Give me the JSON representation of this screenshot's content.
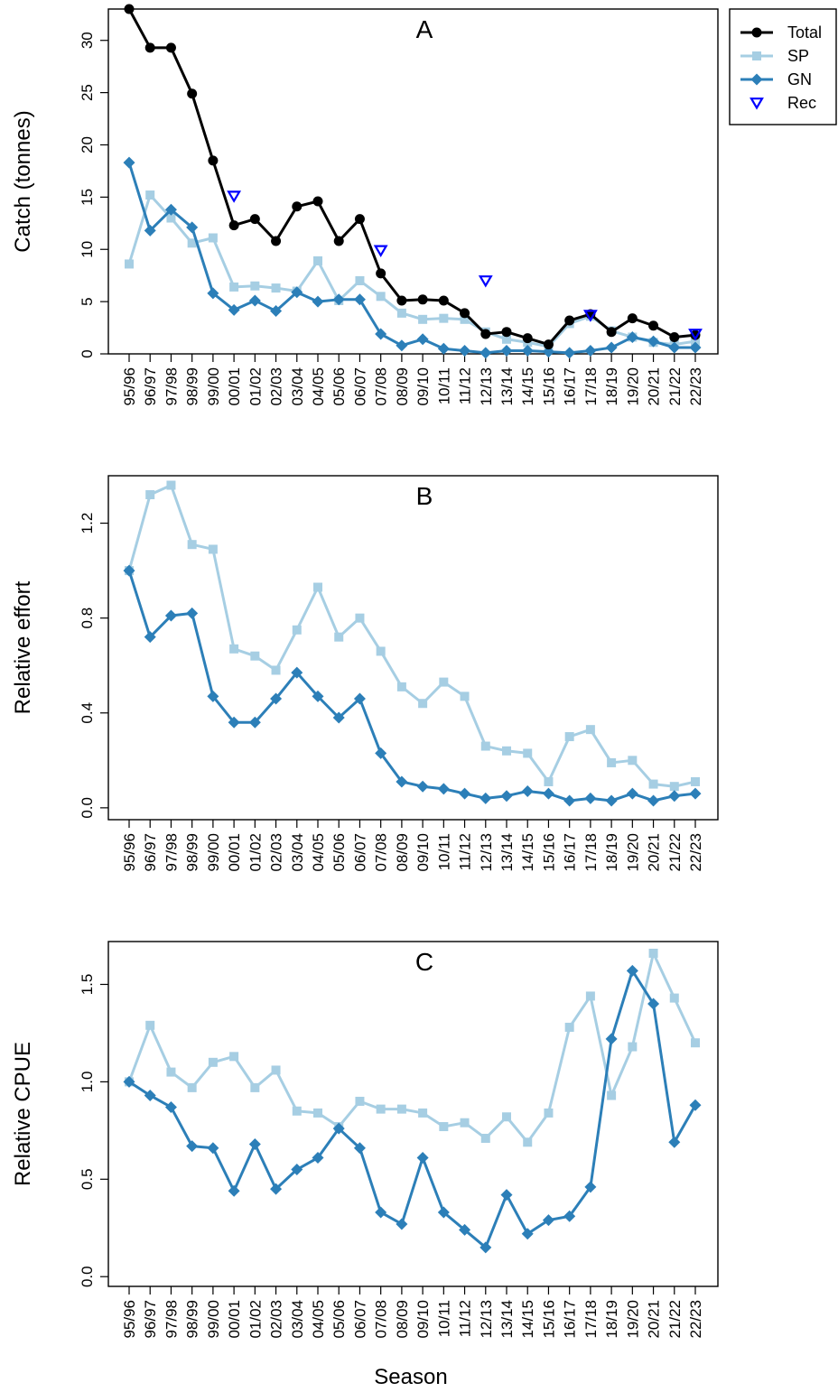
{
  "chart_data": [
    {
      "panel": "A",
      "type": "line",
      "ylabel": "Catch (tonnes)",
      "xlabel": "",
      "ylim": [
        0,
        33
      ],
      "yticks": [
        0,
        5,
        10,
        15,
        20,
        25,
        30
      ],
      "categories": [
        "95/96",
        "96/97",
        "97/98",
        "98/99",
        "99/00",
        "00/01",
        "01/02",
        "02/03",
        "03/04",
        "04/05",
        "05/06",
        "06/07",
        "07/08",
        "08/09",
        "09/10",
        "10/11",
        "11/12",
        "12/13",
        "13/14",
        "14/15",
        "15/16",
        "16/17",
        "17/18",
        "18/19",
        "19/20",
        "20/21",
        "21/22",
        "22/23"
      ],
      "series": [
        {
          "name": "SP",
          "color": "#a6cee3",
          "marker": "square",
          "values": [
            8.6,
            15.2,
            13.0,
            10.6,
            11.1,
            6.4,
            6.5,
            6.3,
            6.0,
            8.9,
            5.1,
            7.0,
            5.5,
            3.9,
            3.3,
            3.4,
            3.3,
            2.1,
            1.4,
            1.1,
            0.7,
            2.9,
            3.6,
            2.2,
            1.6,
            1.1,
            0.9,
            1.2
          ]
        },
        {
          "name": "GN",
          "color": "#2c7fb8",
          "marker": "diamond",
          "values": [
            18.3,
            11.8,
            13.8,
            12.1,
            5.8,
            4.2,
            5.1,
            4.1,
            5.9,
            5.0,
            5.2,
            5.2,
            1.9,
            0.8,
            1.4,
            0.5,
            0.3,
            0.1,
            0.3,
            0.3,
            0.2,
            0.1,
            0.3,
            0.6,
            1.6,
            1.2,
            0.6,
            0.6
          ]
        },
        {
          "name": "Total",
          "color": "#000000",
          "marker": "circle",
          "values": [
            33.0,
            29.3,
            29.3,
            24.9,
            18.5,
            12.3,
            12.9,
            10.8,
            14.1,
            14.6,
            10.8,
            12.9,
            7.7,
            5.1,
            5.2,
            5.1,
            3.9,
            1.9,
            2.1,
            1.5,
            0.9,
            3.2,
            3.8,
            2.1,
            3.4,
            2.7,
            1.6,
            1.8
          ]
        }
      ],
      "rec": {
        "name": "Rec",
        "color": "#0000ff",
        "marker": "triangle-down",
        "points": [
          {
            "x": "00/01",
            "y": 15.1
          },
          {
            "x": "07/08",
            "y": 9.9
          },
          {
            "x": "12/13",
            "y": 7.0
          },
          {
            "x": "17/18",
            "y": 3.7
          },
          {
            "x": "22/23",
            "y": 1.9
          }
        ]
      },
      "legend": {
        "position": "outside-top-right",
        "entries": [
          "Total",
          "SP",
          "GN",
          "Rec"
        ]
      }
    },
    {
      "panel": "B",
      "type": "line",
      "ylabel": "Relative effort",
      "xlabel": "",
      "ylim": [
        -0.05,
        1.4
      ],
      "yticks": [
        0.0,
        0.4,
        0.8,
        1.2
      ],
      "categories": [
        "95/96",
        "96/97",
        "97/98",
        "98/99",
        "99/00",
        "00/01",
        "01/02",
        "02/03",
        "03/04",
        "04/05",
        "05/06",
        "06/07",
        "07/08",
        "08/09",
        "09/10",
        "10/11",
        "11/12",
        "12/13",
        "13/14",
        "14/15",
        "15/16",
        "16/17",
        "17/18",
        "18/19",
        "19/20",
        "20/21",
        "21/22",
        "22/23"
      ],
      "series": [
        {
          "name": "SP",
          "color": "#a6cee3",
          "marker": "square",
          "values": [
            1.0,
            1.32,
            1.36,
            1.11,
            1.09,
            0.67,
            0.64,
            0.58,
            0.75,
            0.93,
            0.72,
            0.8,
            0.66,
            0.51,
            0.44,
            0.53,
            0.47,
            0.26,
            0.24,
            0.23,
            0.11,
            0.3,
            0.33,
            0.19,
            0.2,
            0.1,
            0.09,
            0.11
          ]
        },
        {
          "name": "GN",
          "color": "#2c7fb8",
          "marker": "diamond",
          "values": [
            1.0,
            0.72,
            0.81,
            0.82,
            0.47,
            0.36,
            0.36,
            0.46,
            0.57,
            0.47,
            0.38,
            0.46,
            0.23,
            0.11,
            0.09,
            0.08,
            0.06,
            0.04,
            0.05,
            0.07,
            0.06,
            0.03,
            0.04,
            0.03,
            0.06,
            0.03,
            0.05,
            0.06
          ]
        }
      ]
    },
    {
      "panel": "C",
      "type": "line",
      "ylabel": "Relative CPUE",
      "xlabel": "Season",
      "ylim": [
        -0.05,
        1.72
      ],
      "yticks": [
        0.0,
        0.5,
        1.0,
        1.5
      ],
      "categories": [
        "95/96",
        "96/97",
        "97/98",
        "98/99",
        "99/00",
        "00/01",
        "01/02",
        "02/03",
        "03/04",
        "04/05",
        "05/06",
        "06/07",
        "07/08",
        "08/09",
        "09/10",
        "10/11",
        "11/12",
        "12/13",
        "13/14",
        "14/15",
        "15/16",
        "16/17",
        "17/18",
        "18/19",
        "19/20",
        "20/21",
        "21/22",
        "22/23"
      ],
      "series": [
        {
          "name": "SP",
          "color": "#a6cee3",
          "marker": "square",
          "values": [
            1.0,
            1.29,
            1.05,
            0.97,
            1.1,
            1.13,
            0.97,
            1.06,
            0.85,
            0.84,
            0.77,
            0.9,
            0.86,
            0.86,
            0.84,
            0.77,
            0.79,
            0.71,
            0.82,
            0.69,
            0.84,
            1.28,
            1.44,
            0.93,
            1.18,
            1.66,
            1.43,
            1.2
          ]
        },
        {
          "name": "GN",
          "color": "#2c7fb8",
          "marker": "diamond",
          "values": [
            1.0,
            0.93,
            0.87,
            0.67,
            0.66,
            0.44,
            0.68,
            0.45,
            0.55,
            0.61,
            0.76,
            0.66,
            0.33,
            0.27,
            0.61,
            0.33,
            0.24,
            0.15,
            0.42,
            0.22,
            0.29,
            0.31,
            0.46,
            1.22,
            1.57,
            1.4,
            0.69,
            0.88
          ]
        }
      ]
    }
  ]
}
